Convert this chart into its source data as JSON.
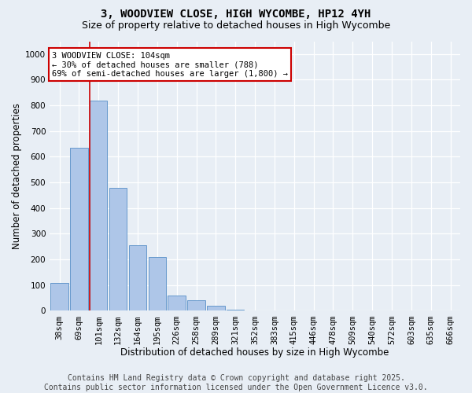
{
  "title": "3, WOODVIEW CLOSE, HIGH WYCOMBE, HP12 4YH",
  "subtitle": "Size of property relative to detached houses in High Wycombe",
  "xlabel": "Distribution of detached houses by size in High Wycombe",
  "ylabel": "Number of detached properties",
  "footer_line1": "Contains HM Land Registry data © Crown copyright and database right 2025.",
  "footer_line2": "Contains public sector information licensed under the Open Government Licence v3.0.",
  "annotation_line1": "3 WOODVIEW CLOSE: 104sqm",
  "annotation_line2": "← 30% of detached houses are smaller (788)",
  "annotation_line3": "69% of semi-detached houses are larger (1,800) →",
  "bar_labels": [
    "38sqm",
    "69sqm",
    "101sqm",
    "132sqm",
    "164sqm",
    "195sqm",
    "226sqm",
    "258sqm",
    "289sqm",
    "321sqm",
    "352sqm",
    "383sqm",
    "415sqm",
    "446sqm",
    "478sqm",
    "509sqm",
    "540sqm",
    "572sqm",
    "603sqm",
    "635sqm",
    "666sqm"
  ],
  "bar_values": [
    110,
    635,
    820,
    480,
    255,
    210,
    60,
    40,
    20,
    5,
    0,
    0,
    2,
    0,
    0,
    0,
    0,
    0,
    0,
    0,
    0
  ],
  "bar_color": "#aec6e8",
  "bar_edge_color": "#6699cc",
  "highlight_bar_index": 2,
  "highlight_color": "#cc0000",
  "ylim": [
    0,
    1050
  ],
  "yticks": [
    0,
    100,
    200,
    300,
    400,
    500,
    600,
    700,
    800,
    900,
    1000
  ],
  "bg_color": "#e8eef5",
  "annotation_box_edge": "#cc0000",
  "title_fontsize": 10,
  "subtitle_fontsize": 9,
  "axis_label_fontsize": 8.5,
  "tick_fontsize": 7.5,
  "footer_fontsize": 7
}
